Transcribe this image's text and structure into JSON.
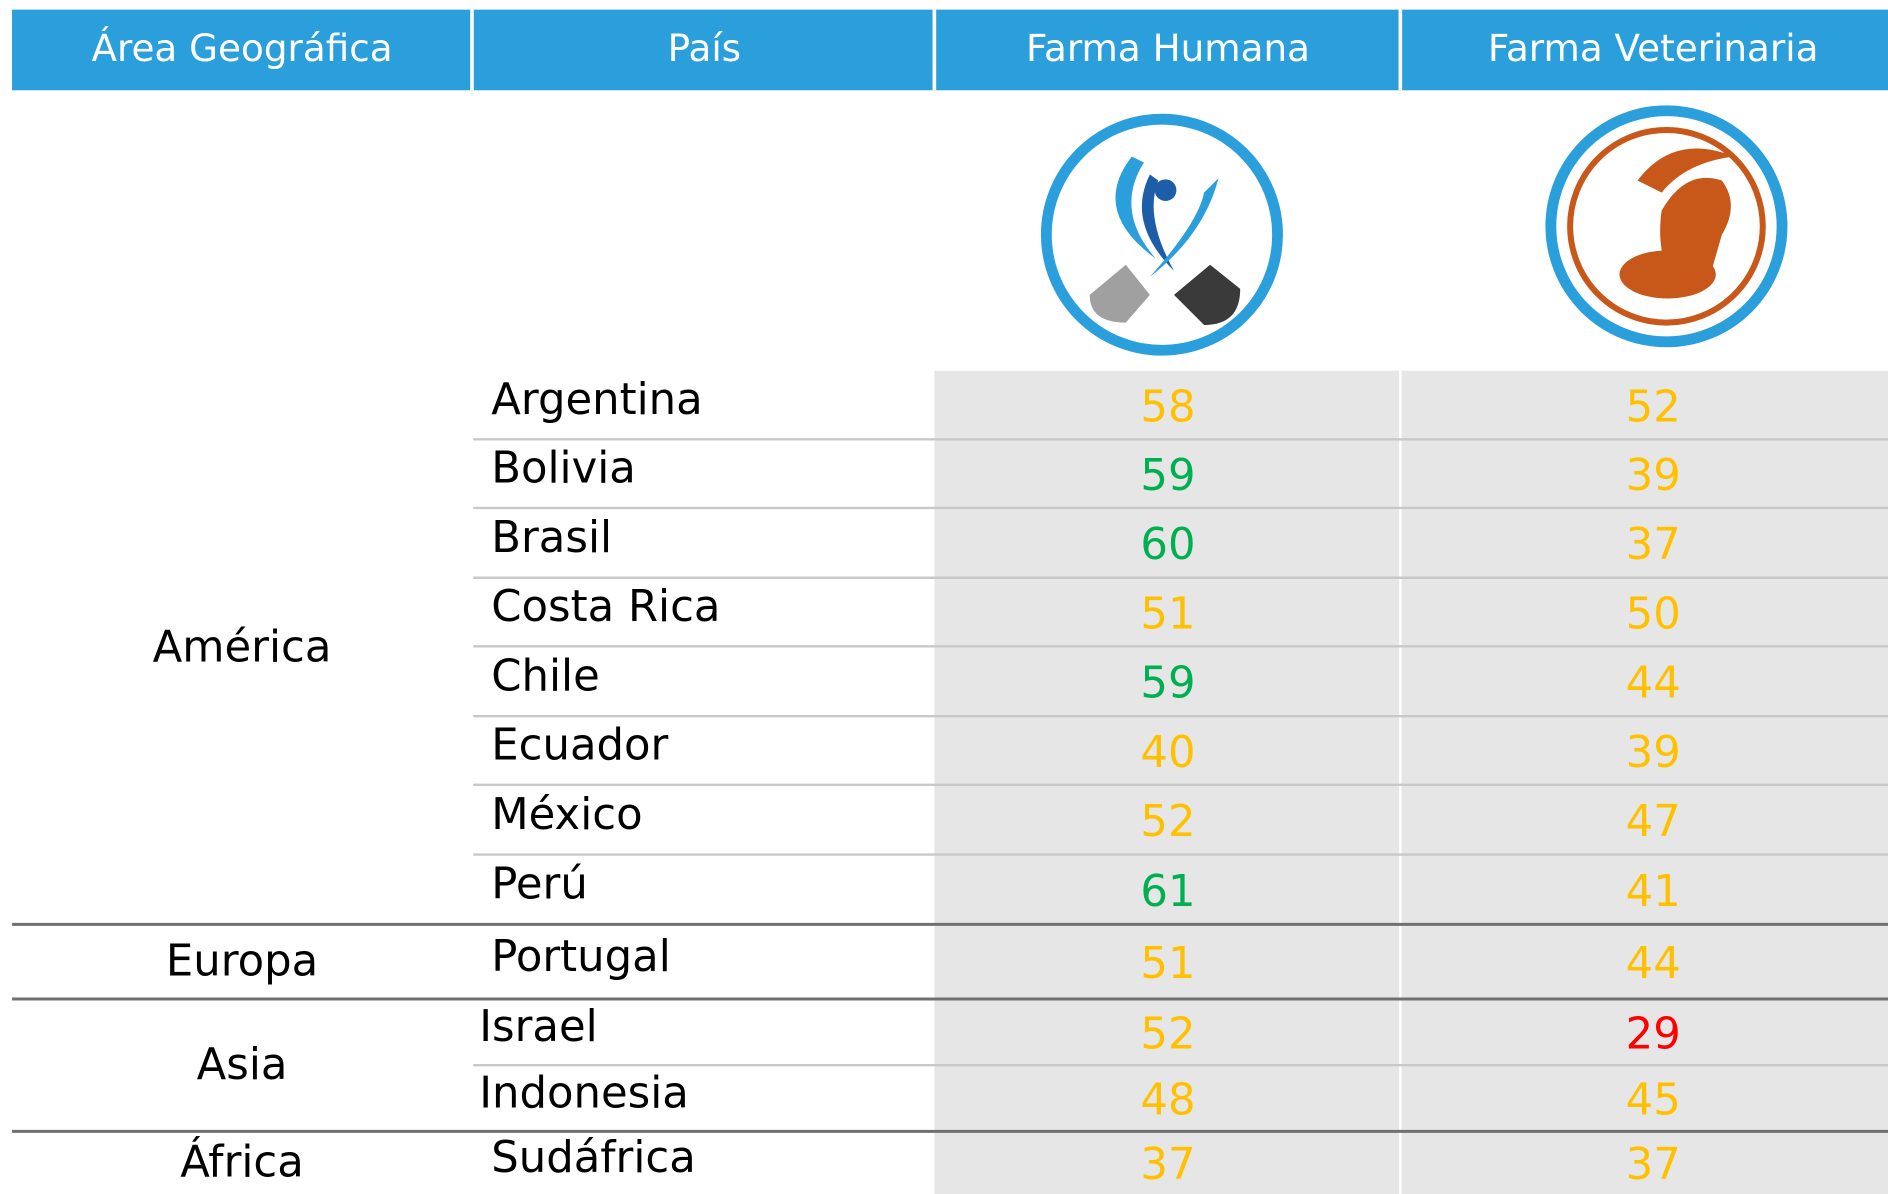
{
  "header": [
    "Área Geográfica",
    "País",
    "Farma Humana",
    "Farma Veterinaria"
  ],
  "regions": [
    {
      "name": "América",
      "countries": [
        {
          "name": "Argentina",
          "human": {
            "value": 58,
            "color": "#ffc000"
          },
          "vet": {
            "value": 52,
            "color": "#ffc000"
          }
        },
        {
          "name": "Bolivia",
          "human": {
            "value": 59,
            "color": "#00b050"
          },
          "vet": {
            "value": 39,
            "color": "#ffc000"
          }
        },
        {
          "name": "Brasil",
          "human": {
            "value": 60,
            "color": "#00b050"
          },
          "vet": {
            "value": 37,
            "color": "#ffc000"
          }
        },
        {
          "name": "Costa Rica",
          "human": {
            "value": 51,
            "color": "#ffc000"
          },
          "vet": {
            "value": 50,
            "color": "#ffc000"
          }
        },
        {
          "name": "Chile",
          "human": {
            "value": 59,
            "color": "#00b050"
          },
          "vet": {
            "value": 44,
            "color": "#ffc000"
          }
        },
        {
          "name": "Ecuador",
          "human": {
            "value": 40,
            "color": "#ffc000"
          },
          "vet": {
            "value": 39,
            "color": "#ffc000"
          }
        },
        {
          "name": "México",
          "human": {
            "value": 52,
            "color": "#ffc000"
          },
          "vet": {
            "value": 47,
            "color": "#ffc000"
          }
        },
        {
          "name": "Perú",
          "human": {
            "value": 61,
            "color": "#00b050"
          },
          "vet": {
            "value": 41,
            "color": "#ffc000"
          }
        }
      ]
    },
    {
      "name": "Europa",
      "countries": [
        {
          "name": "Portugal",
          "human": {
            "value": 51,
            "color": "#ffc000"
          },
          "vet": {
            "value": 44,
            "color": "#ffc000"
          }
        }
      ]
    },
    {
      "name": "Asia",
      "countries": [
        {
          "name": "Israel",
          "human": {
            "value": 52,
            "color": "#ffc000"
          },
          "vet": {
            "value": 29,
            "color": "#ff0000"
          }
        },
        {
          "name": "Indonesia",
          "human": {
            "value": 48,
            "color": "#ffc000"
          },
          "vet": {
            "value": 45,
            "color": "#ffc000"
          }
        }
      ]
    },
    {
      "name": "África",
      "countries": [
        {
          "name": "Sudáfrica",
          "human": {
            "value": 37,
            "color": "#ffc000"
          },
          "vet": {
            "value": 37,
            "color": "#ffc000"
          }
        }
      ]
    }
  ]
}
